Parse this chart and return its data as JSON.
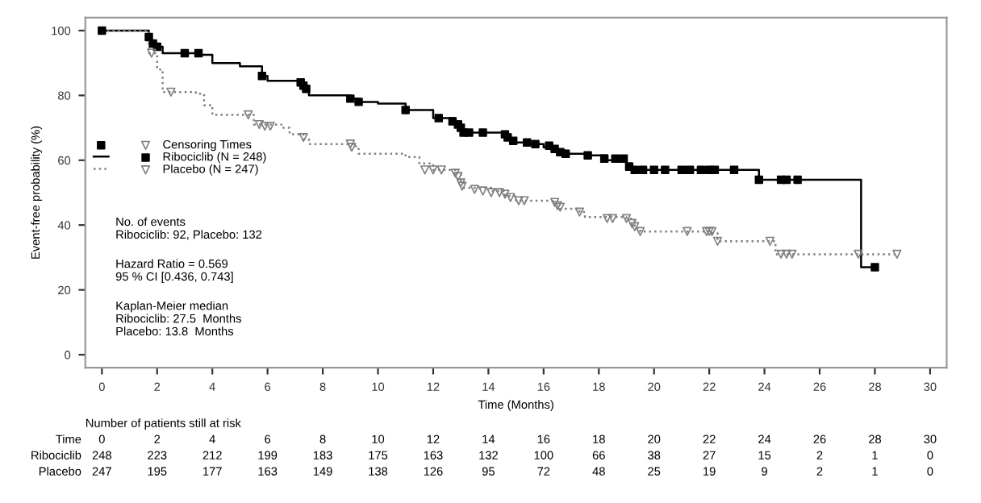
{
  "chart_data": {
    "type": "step",
    "xlabel": "Time (Months)",
    "ylabel": "Event-free probability (%)",
    "legend": "center left",
    "xlim": [
      -0.6,
      30.6
    ],
    "xticks": [
      0,
      2,
      4,
      6,
      8,
      10,
      12,
      14,
      16,
      18,
      20,
      22,
      24,
      26,
      28,
      30
    ],
    "ylim": [
      -4,
      104
    ],
    "yticks": [
      0,
      20,
      40,
      60,
      80,
      100
    ],
    "grid": false,
    "series": [
      {
        "name": "Ribociclib (N = 248)",
        "color": "#000000",
        "line_style": "solid",
        "x": [
          0,
          1.7,
          1.8,
          2.0,
          2.2,
          3.6,
          4.0,
          5.0,
          5.8,
          6.0,
          7.2,
          7.3,
          7.5,
          9.0,
          9.3,
          10.0,
          11.0,
          12.0,
          12.8,
          13.0,
          13.1,
          14.6,
          14.8,
          15.0,
          15.5,
          16.0,
          16.5,
          16.8,
          17.5,
          18.3,
          19.0,
          19.2,
          23.8,
          27.5,
          28.0
        ],
        "values": [
          100,
          98,
          96,
          95,
          93,
          92.5,
          90,
          89,
          86,
          84.5,
          84,
          82,
          80,
          79,
          78,
          77.5,
          75.5,
          73,
          72,
          70,
          68.5,
          68,
          66,
          65.5,
          65,
          64,
          63,
          62,
          61.5,
          60,
          59,
          57,
          54,
          27,
          27
        ]
      },
      {
        "name": "Placebo (N = 247)",
        "color": "#808080",
        "line_style": "dotted",
        "x": [
          0,
          1.7,
          2.0,
          2.2,
          3.4,
          3.7,
          4.0,
          5.5,
          6.5,
          6.8,
          7.3,
          7.5,
          9.2,
          9.3,
          11.0,
          11.5,
          12.0,
          12.8,
          13.0,
          13.1,
          14.1,
          14.6,
          15.0,
          16.4,
          16.6,
          17.3,
          17.5,
          19.0,
          19.3,
          19.5,
          22.0,
          22.3,
          24.4,
          28.8
        ],
        "values": [
          100,
          93,
          88,
          81,
          80.5,
          77,
          74,
          71,
          70,
          68,
          66.5,
          65,
          63.5,
          62,
          61,
          59,
          57,
          56,
          53,
          51.5,
          50.5,
          49,
          47.5,
          47,
          45,
          44,
          42.5,
          42,
          39,
          38,
          37.5,
          35,
          31,
          31
        ]
      },
      {
        "type": "scatter",
        "marker": "square",
        "color": "#000000",
        "x": [
          0,
          1.7,
          1.85,
          2.0,
          3.0,
          3.5,
          5.8,
          7.2,
          7.3,
          7.4,
          9.0,
          9.3,
          11.0,
          12.2,
          12.7,
          12.9,
          13.0,
          13.1,
          13.3,
          13.8,
          14.6,
          14.7,
          14.9,
          15.4,
          15.7,
          16.2,
          16.4,
          16.6,
          16.8,
          17.6,
          18.2,
          18.6,
          18.9,
          19.1,
          19.3,
          19.6,
          20.0,
          20.4,
          21.0,
          21.3,
          21.7,
          22.0,
          22.2,
          22.9,
          23.8,
          24.6,
          24.8,
          25.2,
          28.0
        ],
        "values": [
          100,
          98,
          96,
          95,
          93,
          93,
          86,
          84,
          83,
          82,
          79,
          78,
          75.5,
          73,
          72,
          71,
          70,
          68.5,
          68.5,
          68.5,
          68,
          67,
          66,
          65.5,
          65,
          64.5,
          63.5,
          62.5,
          62,
          61.5,
          60.5,
          60.5,
          60.5,
          58,
          57,
          57,
          57,
          57,
          57,
          57,
          57,
          57,
          57,
          57,
          54,
          54,
          54,
          54,
          27
        ]
      },
      {
        "name": "Censoring Times",
        "type": "scatter",
        "marker": "triangle",
        "color": "#808080",
        "x": [
          1.8,
          2.5,
          5.3,
          5.7,
          5.9,
          6.1,
          7.3,
          9.0,
          9.05,
          11.7,
          12.0,
          12.3,
          12.8,
          12.9,
          13.0,
          13.05,
          13.5,
          13.8,
          14.1,
          14.4,
          14.6,
          14.8,
          15.1,
          15.3,
          16.4,
          16.5,
          16.6,
          17.3,
          18.3,
          18.5,
          19.0,
          19.2,
          19.3,
          19.5,
          21.2,
          21.9,
          22.0,
          22.1,
          22.3,
          24.2,
          24.6,
          24.8,
          25.0,
          27.4,
          28.8
        ],
        "values": [
          93,
          81,
          74,
          71,
          70.5,
          70.5,
          67,
          65,
          64,
          57,
          57,
          57,
          56,
          55,
          53,
          52,
          51,
          50.5,
          50,
          50,
          49.5,
          48.5,
          47.5,
          47.5,
          47,
          46,
          45.5,
          44,
          42,
          42,
          42,
          40.5,
          39.5,
          38,
          38,
          38,
          38,
          38,
          35,
          35,
          31,
          31,
          31,
          31,
          31
        ]
      }
    ],
    "annotations": [
      "No. of events\nRibociclib: 92, Placebo: 132",
      "Hazard Ratio = 0.569\n95 % CI [0.436, 0.743]",
      "Kaplan-Meier median\nRibociclib: 27.5  Months\nPlacebo: 13.8  Months",
      "Number of patients still at risk",
      "Time",
      "0",
      "2",
      "4",
      "6",
      "8",
      "10",
      "12",
      "14",
      "16",
      "18",
      "20",
      "22",
      "24",
      "26",
      "28",
      "30",
      "Ribociclib",
      "248",
      "223",
      "212",
      "199",
      "183",
      "175",
      "163",
      "132",
      "100",
      "66",
      "38",
      "27",
      "15",
      "2",
      "1",
      "0",
      "Placebo",
      "247",
      "195",
      "177",
      "163",
      "149",
      "138",
      "126",
      "95",
      "72",
      "48",
      "25",
      "19",
      "9",
      "2",
      "1",
      "0"
    ]
  }
}
